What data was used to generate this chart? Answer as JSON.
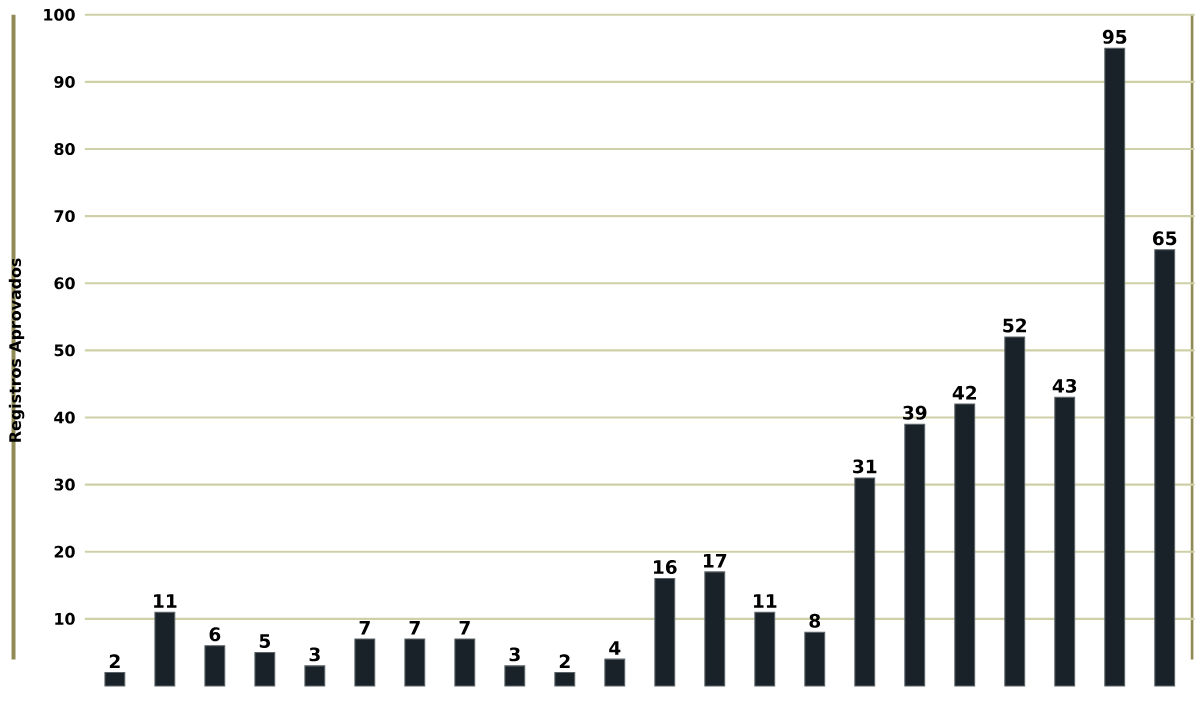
{
  "chart_data": {
    "type": "bar",
    "ylabel": "Registros Aprovados",
    "categories": [
      null,
      null,
      null,
      null,
      null,
      null,
      null,
      null,
      null,
      null,
      null,
      null,
      null,
      null,
      null,
      null,
      null,
      null,
      null,
      null,
      null,
      null
    ],
    "values": [
      2,
      11,
      6,
      5,
      3,
      7,
      7,
      7,
      3,
      2,
      4,
      16,
      17,
      11,
      8,
      31,
      39,
      42,
      52,
      43,
      95,
      65
    ],
    "color": "#182228",
    "ylim": [
      0,
      100
    ],
    "yticks": [
      10,
      20,
      30,
      40,
      50,
      60,
      70,
      80,
      90,
      100
    ],
    "grid": "y",
    "data_labels": true
  }
}
